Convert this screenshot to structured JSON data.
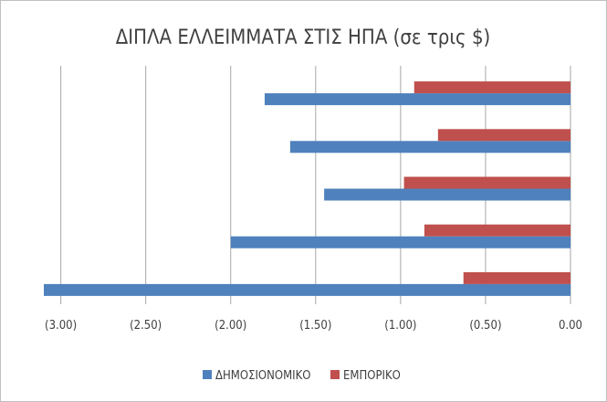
{
  "chart_data": {
    "type": "bar",
    "orientation": "horizontal",
    "title": "ΔΙΠΛΑ ΕΛΛΕΙΜΜΑΤΑ ΣΤΙΣ ΗΠΑ (σε τρις $)",
    "categories": [
      "",
      "",
      "",
      "",
      ""
    ],
    "series": [
      {
        "name": "ΔΗΜΟΣΙΟΝΟΜΙΚΟ",
        "color": "#4f81bd",
        "values": [
          -1.8,
          -1.65,
          -1.45,
          -2.0,
          -3.1
        ]
      },
      {
        "name": "ΕΜΠΟΡΙΚΟ",
        "color": "#c0504d",
        "values": [
          -0.92,
          -0.78,
          -0.98,
          -0.86,
          -0.63
        ]
      }
    ],
    "xlim": [
      -3.1,
      0.0
    ],
    "xticks": [
      -3.0,
      -2.5,
      -2.0,
      -1.5,
      -1.0,
      -0.5,
      0.0
    ],
    "xtick_labels": [
      "(3.00)",
      "(2.50)",
      "(2.00)",
      "(1.50)",
      "(1.00)",
      "(0.50)",
      "0.00"
    ],
    "grid": "vertical",
    "legend": "bottom"
  }
}
